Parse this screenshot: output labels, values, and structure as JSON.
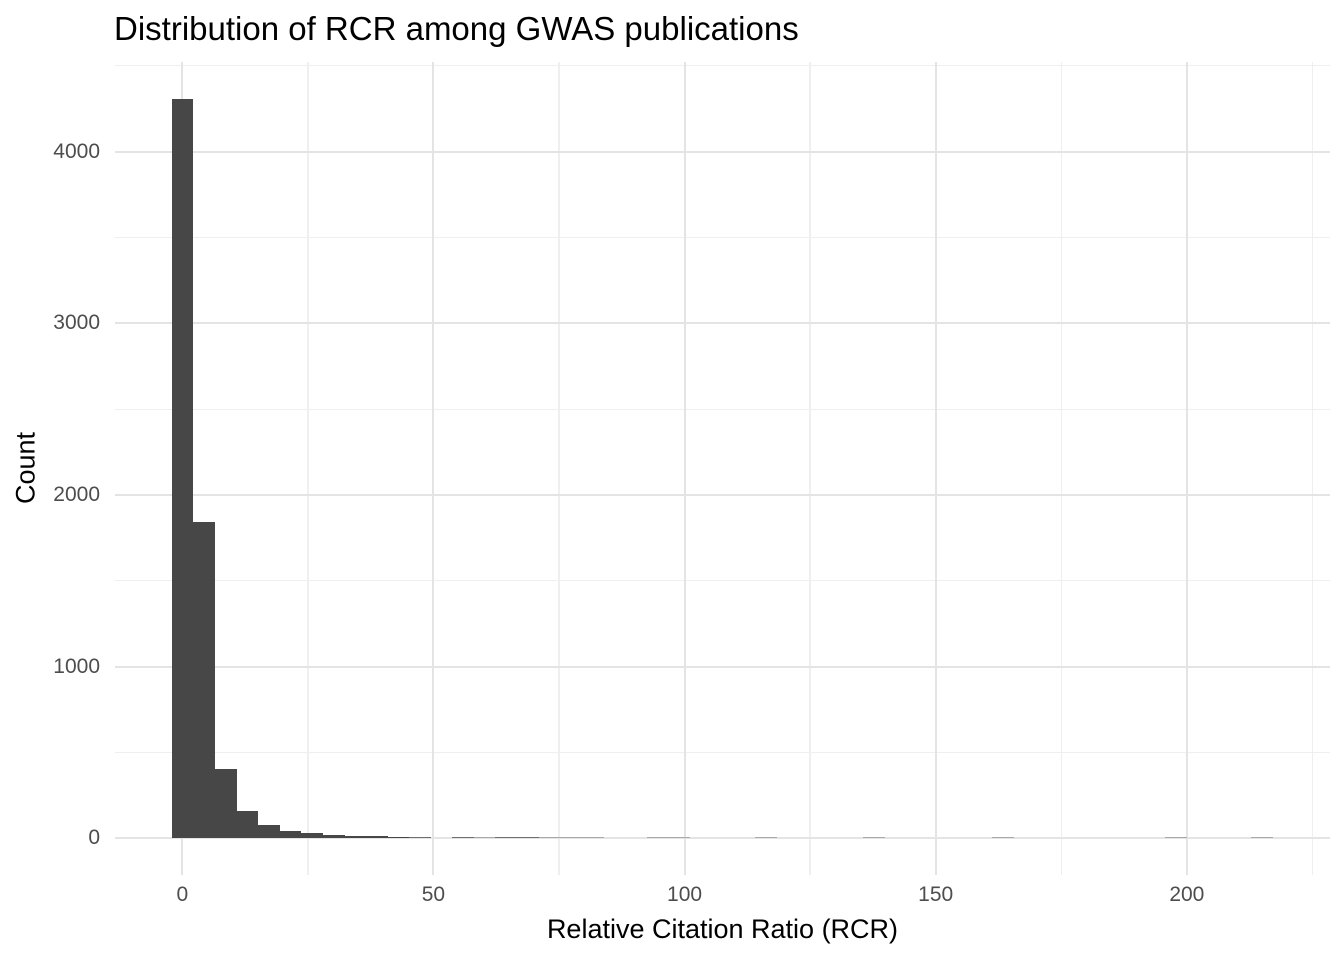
{
  "chart_data": {
    "type": "histogram",
    "title": "Distribution of RCR among GWAS publications",
    "xlabel": "Relative Citation Ratio (RCR)",
    "ylabel": "Count",
    "x_ticks": [
      0,
      50,
      100,
      150,
      200
    ],
    "x_minor_ticks": [
      25,
      75,
      125,
      175,
      225
    ],
    "y_ticks": [
      0,
      1000,
      2000,
      3000,
      4000
    ],
    "y_minor_ticks": [
      500,
      1500,
      2500,
      3500,
      4500
    ],
    "x_range": [
      -13.4,
      228.5
    ],
    "y_range": [
      -213,
      4523
    ],
    "bin_width": 4.3,
    "bin_start": -2.15,
    "counts": [
      4310,
      1845,
      405,
      160,
      80,
      43,
      30,
      22,
      15,
      12,
      9,
      3,
      0,
      2,
      1,
      2,
      2,
      1,
      1,
      1,
      0,
      0,
      1,
      1,
      0,
      0,
      0,
      1,
      0,
      0,
      0,
      0,
      1,
      0,
      0,
      0,
      0,
      0,
      1,
      0,
      0,
      0,
      0,
      0,
      0,
      0,
      1,
      0,
      0,
      0,
      1,
      0,
      0
    ],
    "legend": "none",
    "grid": "on"
  },
  "colors": {
    "background": "#ffffff",
    "bar": "#474747",
    "bar_single_count": "#a9a9a9",
    "bar_low_count": "#6f6f6f",
    "grid_major": "#e4e4e4",
    "grid_minor": "#efefef",
    "tick_label": "#4d4d4d",
    "title_text": "#000000"
  }
}
